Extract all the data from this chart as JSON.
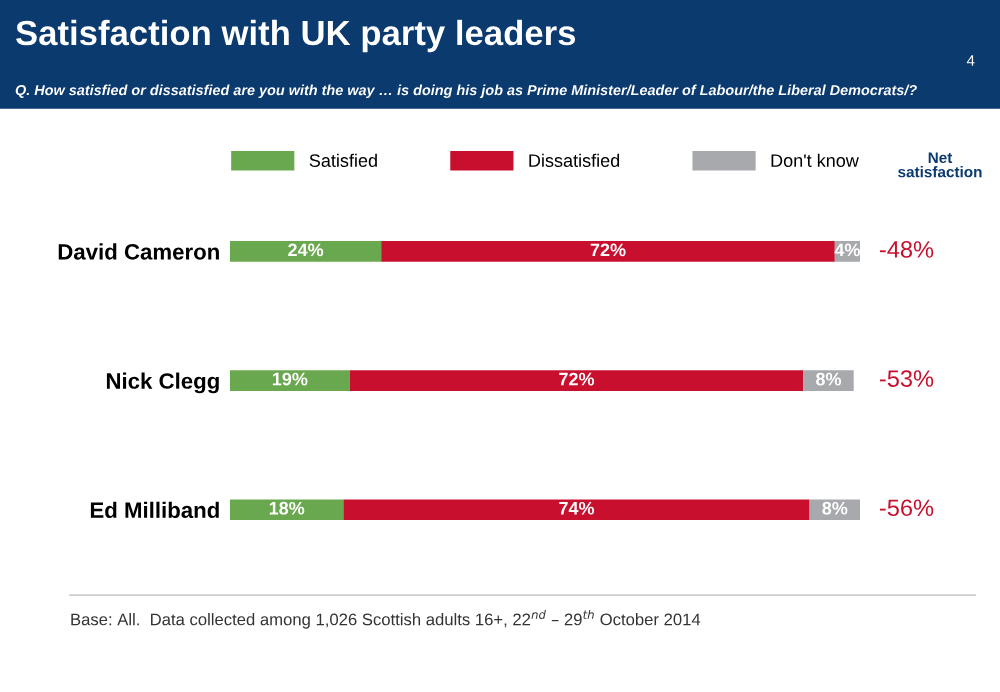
{
  "chart_data": {
    "type": "bar",
    "orientation": "horizontal",
    "stacked": true,
    "title": "Satisfaction with UK party leaders",
    "subtitle": "Q. How satisfied or dissatisfied are you with the way … is doing his job as Prime Minister/Leader of Labour/the Liberal Democrats/?",
    "categories": [
      "David Cameron",
      "Nick Clegg",
      "Ed Milliband"
    ],
    "series": [
      {
        "name": "Satisfied",
        "color": "#6aa84f",
        "values": [
          24,
          19,
          18
        ],
        "value_labels": [
          "24%",
          "19%",
          "18%"
        ]
      },
      {
        "name": "Dissatisfied",
        "color": "#c8102e",
        "values": [
          72,
          72,
          74
        ],
        "value_labels": [
          "72%",
          "72%",
          "74%"
        ]
      },
      {
        "name": "Don't know",
        "color": "#a7a9ac",
        "values": [
          4,
          8,
          8
        ],
        "value_labels": [
          "4%",
          "8%",
          "8%"
        ]
      }
    ],
    "legend": "top",
    "tick_labels": "y",
    "annotations": [
      "4",
      "Net satisfaction",
      "-48%",
      "-53%",
      "-56%",
      "Base: All.  Data collected among 1,026 Scottish adults 16+, 22$^{nd}$ – 29$^{th}$ October 2014"
    ]
  }
}
